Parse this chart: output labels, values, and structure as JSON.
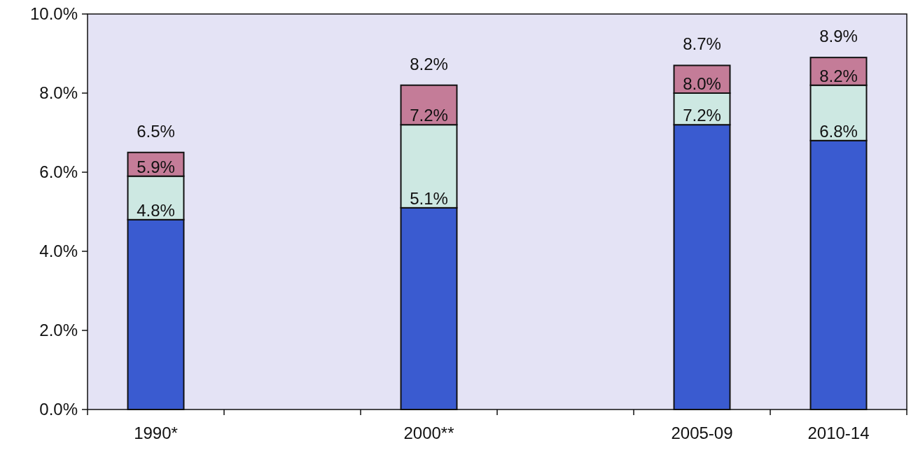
{
  "chart_data": {
    "type": "bar",
    "stacked": true,
    "categories": [
      "1990*",
      null,
      "2000**",
      null,
      "2005-09",
      "2010-14"
    ],
    "series": [
      {
        "color": "#3a5bd0",
        "values": [
          4.8,
          null,
          5.1,
          null,
          7.2,
          6.8
        ]
      },
      {
        "color": "#cde8e2",
        "values": [
          1.1,
          null,
          2.1,
          null,
          0.8,
          1.4
        ]
      },
      {
        "color": "#c47c98",
        "values": [
          0.6,
          null,
          1.0,
          null,
          0.7,
          0.7
        ]
      }
    ],
    "totals": [
      "6.5%",
      null,
      "8.2%",
      null,
      "8.7%",
      "8.9%"
    ],
    "annotations": [
      {
        "text": "4.8%",
        "x": "1990*",
        "y": 4.8
      },
      {
        "text": "5.9%",
        "x": "1990*",
        "y": 5.9
      },
      {
        "text": "5.1%",
        "x": "2000**",
        "y": 5.1
      },
      {
        "text": "7.2%",
        "x": "2000**",
        "y": 7.2
      },
      {
        "text": "7.2%",
        "x": "2005-09",
        "y": 7.2
      },
      {
        "text": "8.0%",
        "x": "2005-09",
        "y": 8.0
      },
      {
        "text": "6.8%",
        "x": "2010-14",
        "y": 6.8
      },
      {
        "text": "8.2%",
        "x": "2010-14",
        "y": 8.2
      }
    ],
    "ylim": [
      0,
      10
    ],
    "yticks": [
      {
        "value": 0,
        "label": "0.0%"
      },
      {
        "value": 2,
        "label": "2.0%"
      },
      {
        "value": 4,
        "label": "4.0%"
      },
      {
        "value": 6,
        "label": "6.0%"
      },
      {
        "value": 8,
        "label": "8.0%"
      },
      {
        "value": 10,
        "label": "10.0%"
      }
    ],
    "grid": false
  }
}
